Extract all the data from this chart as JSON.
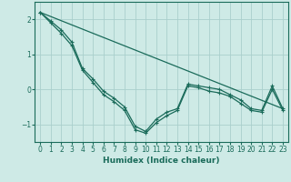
{
  "xlabel": "Humidex (Indice chaleur)",
  "background_color": "#ceeae6",
  "grid_color": "#aacfcc",
  "line_color": "#1a6b5a",
  "xlim": [
    -0.5,
    23.5
  ],
  "ylim": [
    -1.5,
    2.5
  ],
  "yticks": [
    -1,
    0,
    1,
    2
  ],
  "xticks": [
    0,
    1,
    2,
    3,
    4,
    5,
    6,
    7,
    8,
    9,
    10,
    11,
    12,
    13,
    14,
    15,
    16,
    17,
    18,
    19,
    20,
    21,
    22,
    23
  ],
  "series1_x": [
    0,
    1,
    2,
    3,
    4,
    5,
    6,
    7,
    8,
    9,
    10,
    11,
    12,
    13,
    14,
    15,
    16,
    17,
    18,
    19,
    20,
    21,
    22,
    23
  ],
  "series1_y": [
    2.2,
    1.95,
    1.7,
    1.35,
    0.6,
    0.3,
    -0.05,
    -0.25,
    -0.5,
    -1.05,
    -1.2,
    -0.85,
    -0.65,
    -0.55,
    0.15,
    0.1,
    0.05,
    0.0,
    -0.15,
    -0.3,
    -0.55,
    -0.6,
    0.1,
    -0.55
  ],
  "series2_x": [
    0,
    1,
    2,
    3,
    4,
    5,
    6,
    7,
    8,
    9,
    10,
    11,
    12,
    13,
    14,
    15,
    16,
    17,
    18,
    19,
    20,
    21,
    22,
    23
  ],
  "series2_y": [
    2.2,
    1.9,
    1.6,
    1.25,
    0.55,
    0.2,
    -0.15,
    -0.35,
    -0.6,
    -1.15,
    -1.25,
    -0.95,
    -0.75,
    -0.6,
    0.1,
    0.05,
    -0.05,
    -0.1,
    -0.2,
    -0.4,
    -0.6,
    -0.65,
    0.0,
    -0.6
  ],
  "series3_x": [
    0,
    23
  ],
  "series3_y": [
    2.2,
    -0.55
  ]
}
